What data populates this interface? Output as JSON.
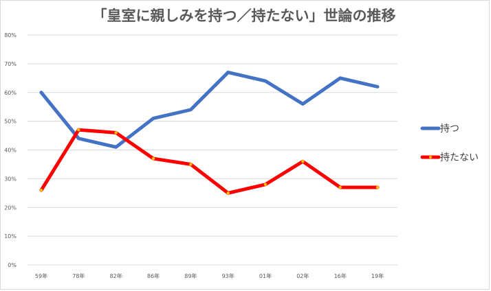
{
  "chart_data": {
    "type": "line",
    "title": "「皇室に親しみを持つ／持たない」世論の推移",
    "categories": [
      "59年",
      "78年",
      "82年",
      "86年",
      "89年",
      "93年",
      "01年",
      "02年",
      "16年",
      "19年"
    ],
    "y_ticks": [
      "0%",
      "10%",
      "20%",
      "30%",
      "40%",
      "50%",
      "60%",
      "70%",
      "80%"
    ],
    "ylim": [
      0,
      80
    ],
    "grid": true,
    "legend_position": "right",
    "series": [
      {
        "name": "持つ",
        "color": "#4472c4",
        "values": [
          60,
          44,
          41,
          51,
          54,
          67,
          64,
          56,
          65,
          62
        ]
      },
      {
        "name": "持たない",
        "color": "#ff0000",
        "values": [
          26,
          47,
          46,
          37,
          35,
          25,
          28,
          36,
          27,
          27
        ]
      }
    ]
  }
}
